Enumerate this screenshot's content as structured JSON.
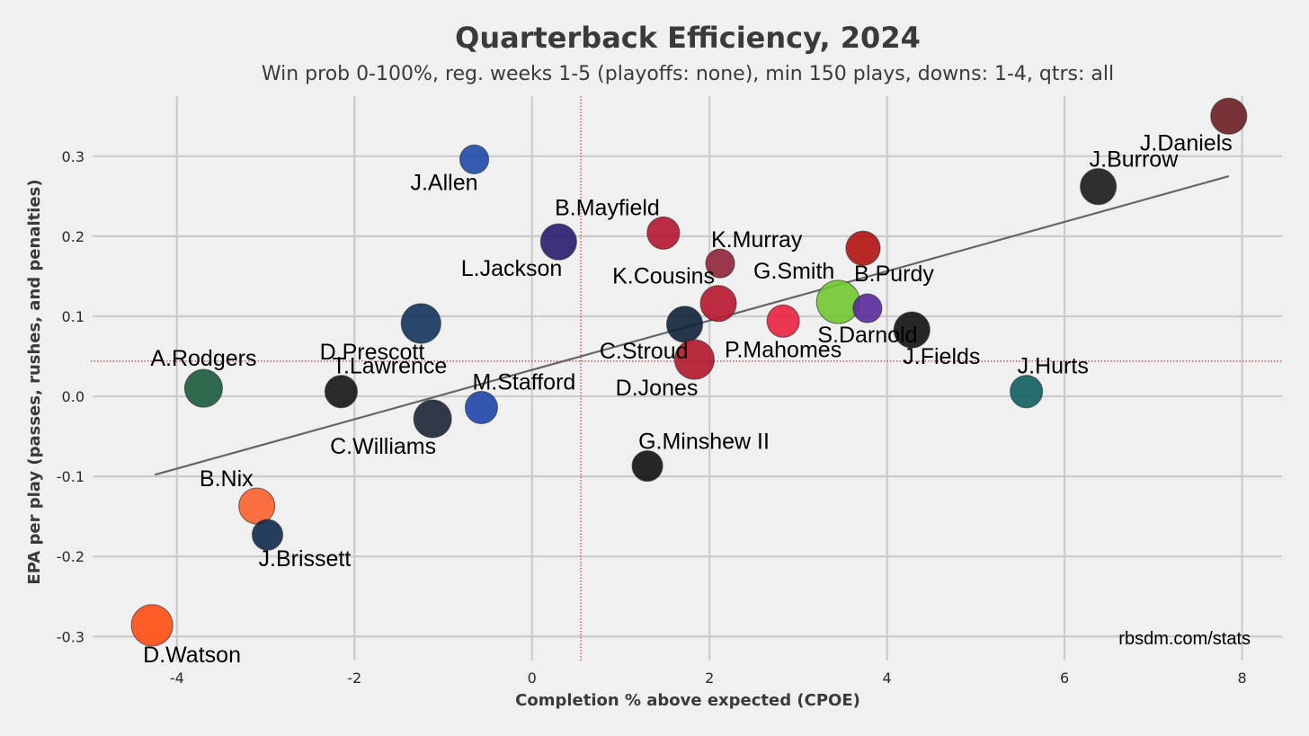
{
  "chart_data": {
    "type": "scatter",
    "title": "Quarterback Efficiency, 2024",
    "subtitle": "Win prob 0-100%, reg. weeks 1-5 (playoffs: none), min 150 plays, downs: 1-4, qtrs: all",
    "xlabel": "Completion % above expected (CPOE)",
    "ylabel": "EPA per play (passes, rushes, and penalties)",
    "xlim": [
      -4.95,
      8.45
    ],
    "ylim": [
      -0.33,
      0.375
    ],
    "x_ticks": [
      "-4",
      "-2",
      "0",
      "2",
      "4",
      "6",
      "8"
    ],
    "y_ticks": [
      "0.3",
      "0.2",
      "0.1",
      "0.0",
      "-0.1",
      "-0.2",
      "-0.3"
    ],
    "x_mean": 0.55,
    "y_mean": 0.044,
    "trend_line": {
      "x": [
        -4.25,
        7.85
      ],
      "y": [
        -0.098,
        0.275
      ]
    },
    "credit": "rbsdm.com/stats",
    "points": [
      {
        "name": "J.Daniels",
        "x": 7.85,
        "y": 0.35,
        "size": 20,
        "color": "#6b1e24",
        "label_pos": "below-left"
      },
      {
        "name": "J.Burrow",
        "x": 6.38,
        "y": 0.262,
        "size": 20,
        "color": "#1a1a1a",
        "label_pos": "above-right"
      },
      {
        "name": "J.Allen",
        "x": -0.65,
        "y": 0.296,
        "size": 16,
        "color": "#1e4aa8",
        "label_pos": "below-left"
      },
      {
        "name": "B.Mayfield",
        "x": 1.48,
        "y": 0.204,
        "size": 18,
        "color": "#b5162f",
        "label_pos": "above-left"
      },
      {
        "name": "L.Jackson",
        "x": 0.3,
        "y": 0.193,
        "size": 20,
        "color": "#2a1c6e",
        "label_pos": "below-left"
      },
      {
        "name": "K.Murray",
        "x": 2.12,
        "y": 0.166,
        "size": 16,
        "color": "#8f2238",
        "label_pos": "above-right"
      },
      {
        "name": "B.Purdy",
        "x": 3.73,
        "y": 0.185,
        "size": 19,
        "color": "#b0120f",
        "label_pos": "below-right"
      },
      {
        "name": "K.Cousins",
        "x": 2.1,
        "y": 0.116,
        "size": 20,
        "color": "#b7162e",
        "label_pos": "above-left"
      },
      {
        "name": "G.Smith",
        "x": 3.45,
        "y": 0.118,
        "size": 24,
        "color": "#70c830",
        "label_pos": "above-left"
      },
      {
        "name": "S.Darnold",
        "x": 3.78,
        "y": 0.11,
        "size": 16,
        "color": "#5a2a9a",
        "label_pos": "below"
      },
      {
        "name": "D.Prescott",
        "x": -1.25,
        "y": 0.091,
        "size": 22,
        "color": "#13345c",
        "label_pos": "below-left"
      },
      {
        "name": "C.Stroud",
        "x": 1.72,
        "y": 0.09,
        "size": 20,
        "color": "#0f2238",
        "label_pos": "below-left"
      },
      {
        "name": "P.Mahomes",
        "x": 2.83,
        "y": 0.094,
        "size": 18,
        "color": "#e8213f",
        "label_pos": "below"
      },
      {
        "name": "J.Fields",
        "x": 4.28,
        "y": 0.083,
        "size": 20,
        "color": "#111111",
        "label_pos": "below-right"
      },
      {
        "name": "D.Jones",
        "x": 1.83,
        "y": 0.046,
        "size": 22,
        "color": "#b3162c",
        "label_pos": "below-left"
      },
      {
        "name": "A.Rodgers",
        "x": -3.7,
        "y": 0.01,
        "size": 21,
        "color": "#1a5b3c",
        "label_pos": "above"
      },
      {
        "name": "T.Lawrence",
        "x": -2.15,
        "y": 0.006,
        "size": 18,
        "color": "#141414",
        "label_pos": "above-right"
      },
      {
        "name": "J.Hurts",
        "x": 5.57,
        "y": 0.006,
        "size": 18,
        "color": "#0f5e5e",
        "label_pos": "above-right"
      },
      {
        "name": "M.Stafford",
        "x": -0.57,
        "y": -0.014,
        "size": 18,
        "color": "#1e46a8",
        "label_pos": "above-right"
      },
      {
        "name": "C.Williams",
        "x": -1.12,
        "y": -0.028,
        "size": 21,
        "color": "#1c2434",
        "label_pos": "below-left"
      },
      {
        "name": "G.Minshew II",
        "x": 1.3,
        "y": -0.087,
        "size": 17,
        "color": "#111111",
        "label_pos": "above-right"
      },
      {
        "name": "B.Nix",
        "x": -3.1,
        "y": -0.137,
        "size": 20,
        "color": "#fb5f2c",
        "label_pos": "above-left"
      },
      {
        "name": "J.Brissett",
        "x": -2.98,
        "y": -0.173,
        "size": 17,
        "color": "#102a4a",
        "label_pos": "below-right"
      },
      {
        "name": "D.Watson",
        "x": -4.28,
        "y": -0.286,
        "size": 23,
        "color": "#ff4d12",
        "label_pos": "below-right"
      }
    ]
  }
}
